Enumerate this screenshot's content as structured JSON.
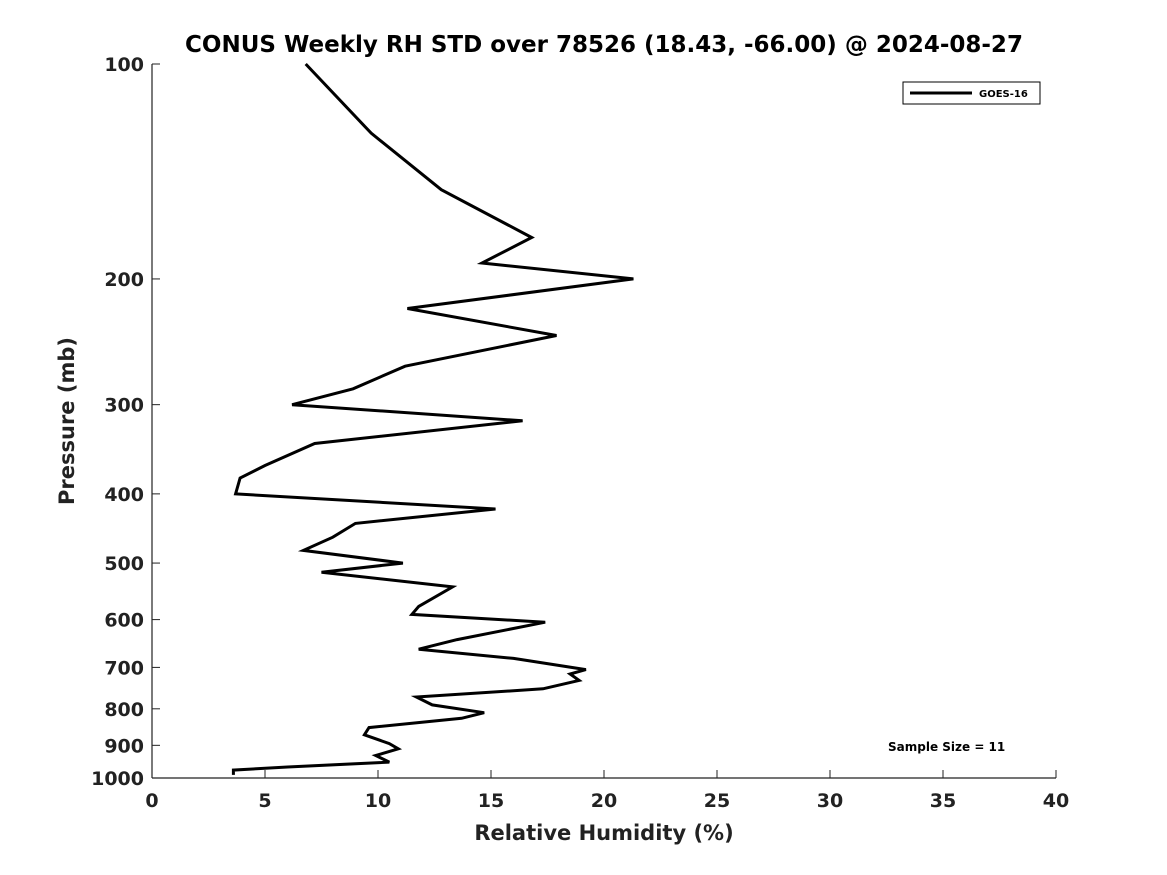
{
  "chart_data": {
    "type": "line",
    "title": "CONUS Weekly RH STD over 78526 (18.43, -66.00) @ 2024-08-27",
    "xlabel": "Relative Humidity (%)",
    "ylabel": "Pressure (mb)",
    "xlim": [
      0,
      40
    ],
    "ylim": [
      100,
      1000
    ],
    "y_scale": "log",
    "y_reversed": true,
    "grid": false,
    "legend_position": "top-right",
    "xticks": [
      0,
      5,
      10,
      15,
      20,
      25,
      30,
      35,
      40
    ],
    "xtick_labels": [
      "0",
      "5",
      "10",
      "15",
      "20",
      "25",
      "30",
      "35",
      "40"
    ],
    "yticks": [
      100,
      200,
      300,
      400,
      500,
      600,
      700,
      800,
      900,
      1000
    ],
    "ytick_labels": [
      "100",
      "200",
      "300",
      "400",
      "500",
      "600",
      "700",
      "800",
      "900",
      "1000"
    ],
    "annotation": "Sample Size = 11",
    "series": [
      {
        "name": "GOES-16",
        "color": "#000000",
        "points": [
          [
            6.8,
            100
          ],
          [
            9.7,
            125
          ],
          [
            12.8,
            150
          ],
          [
            16.8,
            175
          ],
          [
            14.6,
            190
          ],
          [
            21.3,
            200
          ],
          [
            11.3,
            220
          ],
          [
            17.9,
            240
          ],
          [
            11.2,
            265
          ],
          [
            8.9,
            285
          ],
          [
            6.2,
            300
          ],
          [
            16.4,
            316
          ],
          [
            7.2,
            340
          ],
          [
            5.0,
            365
          ],
          [
            3.9,
            380
          ],
          [
            3.7,
            400
          ],
          [
            15.2,
            420
          ],
          [
            9.0,
            440
          ],
          [
            8.0,
            460
          ],
          [
            6.7,
            480
          ],
          [
            11.1,
            500
          ],
          [
            7.5,
            515
          ],
          [
            13.3,
            540
          ],
          [
            11.8,
            575
          ],
          [
            11.5,
            590
          ],
          [
            17.4,
            605
          ],
          [
            13.5,
            640
          ],
          [
            11.8,
            660
          ],
          [
            16.0,
            680
          ],
          [
            19.2,
            705
          ],
          [
            18.5,
            715
          ],
          [
            18.9,
            730
          ],
          [
            17.3,
            750
          ],
          [
            11.7,
            770
          ],
          [
            12.4,
            790
          ],
          [
            14.7,
            810
          ],
          [
            13.7,
            825
          ],
          [
            9.6,
            850
          ],
          [
            9.4,
            870
          ],
          [
            10.5,
            895
          ],
          [
            10.9,
            910
          ],
          [
            9.9,
            930
          ],
          [
            10.5,
            950
          ],
          [
            6.0,
            965
          ],
          [
            3.6,
            975
          ],
          [
            3.6,
            990
          ]
        ]
      }
    ]
  }
}
